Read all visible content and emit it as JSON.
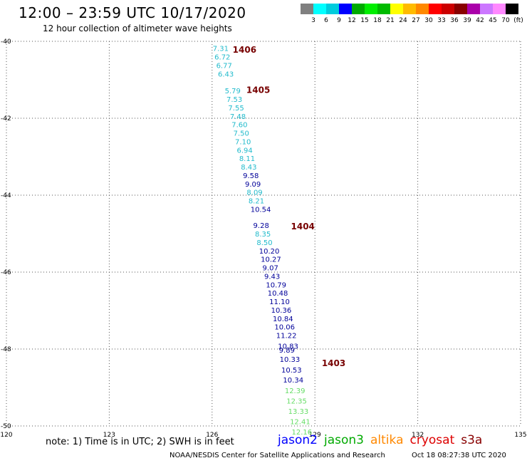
{
  "header": {
    "title": "12:00 – 23:59 UTC 10/17/2020",
    "subtitle": "12 hour collection of altimeter wave heights"
  },
  "scale": {
    "colors": [
      "#808080",
      "#00ffff",
      "#00ccdd",
      "#0000ff",
      "#00aa00",
      "#00ee00",
      "#00bb00",
      "#ffff00",
      "#ffbb00",
      "#ff8800",
      "#ff0000",
      "#cc0000",
      "#880000",
      "#aa00aa",
      "#cc77ff",
      "#ff88ff",
      "#000000"
    ],
    "labels": [
      "3",
      "6",
      "9",
      "12",
      "15",
      "18",
      "21",
      "24",
      "27",
      "30",
      "33",
      "36",
      "39",
      "42",
      "45",
      "70",
      "(ft)"
    ]
  },
  "axes": {
    "lat_ticks": [
      "-40",
      "-42",
      "-44",
      "-46",
      "-48",
      "-50"
    ],
    "lon_ticks": [
      "120",
      "123",
      "126",
      "129",
      "132",
      "135"
    ]
  },
  "track": {
    "pass_labels": [
      {
        "text": "1406",
        "lon": 126.6,
        "lat": -40.2
      },
      {
        "text": "1405",
        "lon": 127.0,
        "lat": -41.25
      },
      {
        "text": "1404",
        "lon": 128.3,
        "lat": -44.8
      },
      {
        "text": "1403",
        "lon": 129.2,
        "lat": -48.35
      }
    ],
    "points": [
      {
        "text": "7.31",
        "lon": 126.02,
        "lat": -40.18,
        "color": "#22bbcc"
      },
      {
        "text": "6.72",
        "lon": 126.07,
        "lat": -40.4,
        "color": "#22bbcc"
      },
      {
        "text": "6.77",
        "lon": 126.12,
        "lat": -40.62,
        "color": "#22bbcc"
      },
      {
        "text": "6.43",
        "lon": 126.17,
        "lat": -40.84,
        "color": "#22bbcc"
      },
      {
        "text": "5.79",
        "lon": 126.37,
        "lat": -41.28,
        "color": "#22bbcc"
      },
      {
        "text": "7.53",
        "lon": 126.42,
        "lat": -41.5,
        "color": "#22bbcc"
      },
      {
        "text": "7.55",
        "lon": 126.47,
        "lat": -41.72,
        "color": "#22bbcc"
      },
      {
        "text": "7.48",
        "lon": 126.52,
        "lat": -41.94,
        "color": "#22bbcc"
      },
      {
        "text": "7.60",
        "lon": 126.57,
        "lat": -42.16,
        "color": "#22bbcc"
      },
      {
        "text": "7.50",
        "lon": 126.62,
        "lat": -42.38,
        "color": "#22bbcc"
      },
      {
        "text": "7.10",
        "lon": 126.67,
        "lat": -42.6,
        "color": "#22bbcc"
      },
      {
        "text": "6.94",
        "lon": 126.72,
        "lat": -42.82,
        "color": "#22bbcc"
      },
      {
        "text": "8.11",
        "lon": 126.79,
        "lat": -43.04,
        "color": "#22bbcc"
      },
      {
        "text": "8.43",
        "lon": 126.84,
        "lat": -43.26,
        "color": "#22bbcc"
      },
      {
        "text": "9.58",
        "lon": 126.9,
        "lat": -43.48,
        "color": "#000099"
      },
      {
        "text": "9.09",
        "lon": 126.96,
        "lat": -43.7,
        "color": "#000099"
      },
      {
        "text": "8.09",
        "lon": 127.01,
        "lat": -43.92,
        "color": "#22bbcc"
      },
      {
        "text": "8.21",
        "lon": 127.06,
        "lat": -44.14,
        "color": "#22bbcc"
      },
      {
        "text": "10.54",
        "lon": 127.12,
        "lat": -44.36,
        "color": "#000099"
      },
      {
        "text": "9.28",
        "lon": 127.2,
        "lat": -44.78,
        "color": "#000099"
      },
      {
        "text": "8.35",
        "lon": 127.25,
        "lat": -45.0,
        "color": "#22bbcc"
      },
      {
        "text": "8.50",
        "lon": 127.3,
        "lat": -45.22,
        "color": "#22bbcc"
      },
      {
        "text": "10.20",
        "lon": 127.37,
        "lat": -45.44,
        "color": "#000099"
      },
      {
        "text": "10.27",
        "lon": 127.42,
        "lat": -45.66,
        "color": "#000099"
      },
      {
        "text": "9.07",
        "lon": 127.47,
        "lat": -45.88,
        "color": "#000099"
      },
      {
        "text": "9.43",
        "lon": 127.52,
        "lat": -46.1,
        "color": "#000099"
      },
      {
        "text": "10.79",
        "lon": 127.57,
        "lat": -46.32,
        "color": "#000099"
      },
      {
        "text": "10.48",
        "lon": 127.62,
        "lat": -46.54,
        "color": "#000099"
      },
      {
        "text": "11.10",
        "lon": 127.67,
        "lat": -46.76,
        "color": "#000099"
      },
      {
        "text": "10.36",
        "lon": 127.72,
        "lat": -46.98,
        "color": "#000099"
      },
      {
        "text": "10.84",
        "lon": 127.77,
        "lat": -47.2,
        "color": "#000099"
      },
      {
        "text": "10.06",
        "lon": 127.82,
        "lat": -47.42,
        "color": "#000099"
      },
      {
        "text": "11.22",
        "lon": 127.87,
        "lat": -47.64,
        "color": "#000099"
      },
      {
        "text": "10.83",
        "lon": 127.92,
        "lat": -47.92,
        "color": "#000099"
      },
      {
        "text": "9.89",
        "lon": 127.95,
        "lat": -48.02,
        "color": "#000099"
      },
      {
        "text": "10.33",
        "lon": 127.97,
        "lat": -48.26,
        "color": "#000099"
      },
      {
        "text": "10.53",
        "lon": 128.02,
        "lat": -48.54,
        "color": "#000099"
      },
      {
        "text": "10.34",
        "lon": 128.07,
        "lat": -48.8,
        "color": "#000099"
      },
      {
        "text": "12.39",
        "lon": 128.12,
        "lat": -49.07,
        "color": "#66dd66"
      },
      {
        "text": "12.35",
        "lon": 128.17,
        "lat": -49.34,
        "color": "#66dd66"
      },
      {
        "text": "13.33",
        "lon": 128.22,
        "lat": -49.61,
        "color": "#66dd66"
      },
      {
        "text": "12.41",
        "lon": 128.27,
        "lat": -49.88,
        "color": "#66dd66"
      },
      {
        "text": "12.16",
        "lon": 128.32,
        "lat": -50.15,
        "color": "#66dd66"
      }
    ]
  },
  "footer": {
    "note": "note: 1) Time is in UTC; 2) SWH is in feet",
    "satellites": [
      {
        "name": "jason2",
        "color": "#0000ff"
      },
      {
        "name": "jason3",
        "color": "#00aa00"
      },
      {
        "name": "altika",
        "color": "#ff8800"
      },
      {
        "name": "cryosat",
        "color": "#dd0000"
      },
      {
        "name": "s3a",
        "color": "#880000"
      }
    ],
    "credit": "NOAA/NESDIS Center for Satellite Applications and Research",
    "timestamp": "Oct 18 08:27:38 UTC 2020"
  }
}
